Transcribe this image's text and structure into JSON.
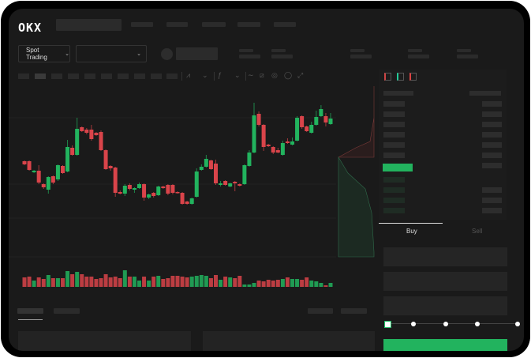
{
  "header": {
    "logo": "OKX"
  },
  "market": {
    "mode_button": "Spot Trading",
    "pair_dropdown": ""
  },
  "trade": {
    "tabs": [
      {
        "label": "Buy",
        "active": true
      },
      {
        "label": "Sell",
        "active": false
      }
    ],
    "slider_percent": 0
  },
  "colors": {
    "up": "#22b35e",
    "down": "#d9444a",
    "background": "#1a1a1a",
    "accent": "#22b35e"
  },
  "icons": [
    "candle-type-icon",
    "indicator-icon",
    "draw-icon",
    "camera-icon",
    "settings-icon",
    "fullscreen-icon",
    "orderbook-both-icon",
    "orderbook-buy-icon",
    "orderbook-sell-icon"
  ],
  "chart_data": {
    "type": "candlestick",
    "title": "",
    "xlabel": "",
    "ylabel": "",
    "grid": true,
    "candles_ohlc": [
      [
        97,
        93,
        98,
        92
      ],
      [
        97,
        86,
        98,
        85
      ],
      [
        83,
        85,
        86,
        82
      ],
      [
        85,
        70,
        92,
        68
      ],
      [
        68,
        64,
        69,
        62
      ],
      [
        61,
        77,
        78,
        56
      ],
      [
        78,
        70,
        79,
        68
      ],
      [
        74,
        92,
        93,
        72
      ],
      [
        91,
        82,
        92,
        81
      ],
      [
        84,
        115,
        124,
        83
      ],
      [
        114,
        105,
        117,
        104
      ],
      [
        105,
        138,
        152,
        104
      ],
      [
        140,
        135,
        141,
        134
      ],
      [
        137,
        133,
        139,
        131
      ],
      [
        137,
        125,
        143,
        123
      ],
      [
        133,
        130,
        134,
        129
      ],
      [
        134,
        111,
        136,
        110
      ],
      [
        111,
        87,
        112,
        86
      ],
      [
        91,
        88,
        92,
        85
      ],
      [
        89,
        57,
        90,
        52
      ],
      [
        58,
        56,
        60,
        55
      ],
      [
        56,
        66,
        68,
        53
      ],
      [
        67,
        62,
        69,
        60
      ],
      [
        61,
        63,
        64,
        57
      ],
      [
        63,
        68,
        70,
        62
      ],
      [
        68,
        51,
        69,
        47
      ],
      [
        51,
        55,
        56,
        49
      ],
      [
        57,
        53,
        58,
        51
      ],
      [
        54,
        65,
        66,
        53
      ],
      [
        65,
        63,
        66,
        62
      ],
      [
        67,
        56,
        68,
        54
      ],
      [
        67,
        57,
        68,
        55
      ],
      [
        58,
        57,
        59,
        56
      ],
      [
        57,
        43,
        58,
        42
      ],
      [
        46,
        43,
        47,
        42
      ],
      [
        43,
        50,
        51,
        42
      ],
      [
        52,
        84,
        88,
        51
      ],
      [
        86,
        90,
        93,
        85
      ],
      [
        90,
        100,
        105,
        89
      ],
      [
        98,
        87,
        99,
        86
      ],
      [
        94,
        69,
        99,
        67
      ],
      [
        67,
        69,
        72,
        65
      ],
      [
        72,
        67,
        73,
        66
      ],
      [
        65,
        69,
        70,
        64
      ],
      [
        71,
        69,
        72,
        59
      ],
      [
        68,
        66,
        69,
        65
      ],
      [
        68,
        92,
        93,
        67
      ],
      [
        91,
        108,
        111,
        90
      ],
      [
        108,
        155,
        171,
        107
      ],
      [
        157,
        143,
        160,
        141
      ],
      [
        143,
        115,
        144,
        110
      ],
      [
        118,
        116,
        119,
        115
      ],
      [
        115,
        108,
        116,
        106
      ],
      [
        111,
        108,
        114,
        107
      ],
      [
        105,
        120,
        123,
        104
      ],
      [
        122,
        120,
        126,
        119
      ],
      [
        118,
        122,
        127,
        117
      ],
      [
        123,
        152,
        154,
        122
      ],
      [
        154,
        140,
        155,
        138
      ],
      [
        141,
        135,
        142,
        134
      ],
      [
        133,
        143,
        147,
        132
      ],
      [
        143,
        153,
        161,
        142
      ],
      [
        154,
        163,
        168,
        153
      ],
      [
        154,
        146,
        158,
        141
      ],
      [
        144,
        151,
        158,
        143
      ]
    ],
    "volume": [
      12,
      13,
      8,
      12,
      10,
      15,
      11,
      11,
      11,
      20,
      16,
      19,
      16,
      13,
      13,
      10,
      11,
      16,
      12,
      13,
      11,
      21,
      13,
      13,
      8,
      13,
      8,
      13,
      14,
      10,
      11,
      14,
      14,
      13,
      12,
      13,
      14,
      15,
      14,
      11,
      15,
      9,
      13,
      12,
      11,
      14,
      3,
      3,
      5,
      8,
      7,
      9,
      8,
      9,
      10,
      12,
      10,
      10,
      9,
      12,
      8,
      7,
      5,
      2,
      5
    ]
  }
}
